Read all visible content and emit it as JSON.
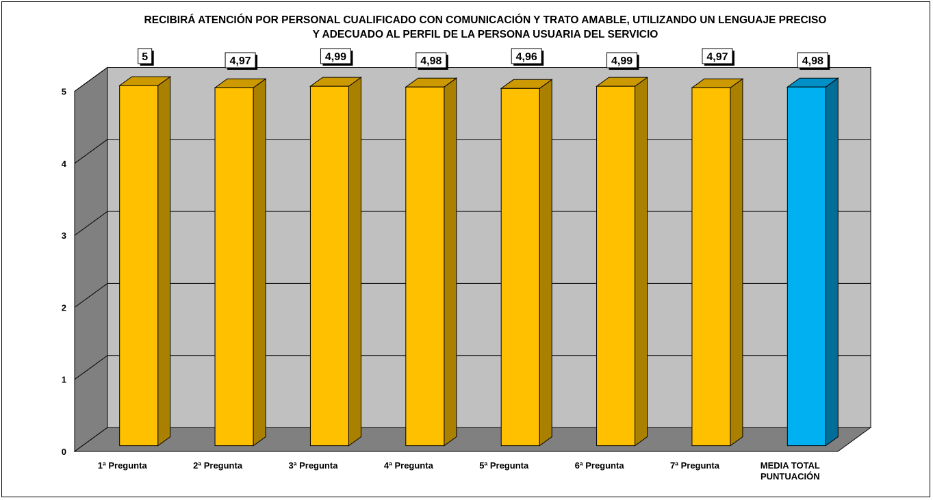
{
  "chart_data": {
    "type": "bar",
    "title_lines": [
      "RECIBIRÁ ATENCIÓN POR PERSONAL CUALIFICADO CON COMUNICACIÓN Y TRATO AMABLE, UTILIZANDO UN LENGUAJE PRECISO",
      "Y ADECUADO AL PERFIL DE LA PERSONA USUARIA DEL SERVICIO"
    ],
    "categories": [
      [
        "1ª Pregunta"
      ],
      [
        "2ª Pregunta"
      ],
      [
        "3ª Pregunta"
      ],
      [
        "4ª Pregunta"
      ],
      [
        "5ª Pregunta"
      ],
      [
        "6ª Pregunta"
      ],
      [
        "7ª Pregunta"
      ],
      [
        "MEDIA TOTAL",
        "PUNTUACIÓN"
      ]
    ],
    "values": [
      5,
      4.97,
      4.99,
      4.98,
      4.96,
      4.99,
      4.97,
      4.98
    ],
    "value_labels": [
      "5",
      "4,97",
      "4,99",
      "4,98",
      "4,96",
      "4,99",
      "4,97",
      "4,98"
    ],
    "y_ticks": [
      0,
      1,
      2,
      3,
      4,
      5
    ],
    "ylim": [
      0,
      5
    ],
    "grid": true,
    "legend": "none",
    "colors": {
      "bar_front": "#FFC000",
      "bar_side": "#AA8000",
      "bar_top": "#CC9900",
      "highlight_front": "#00B0F0",
      "highlight_side": "#006E99",
      "highlight_top": "#0090C8",
      "back_wall": "#C0C0C0",
      "side_wall": "#808080",
      "floor": "#808080"
    },
    "highlight_index": 7
  }
}
